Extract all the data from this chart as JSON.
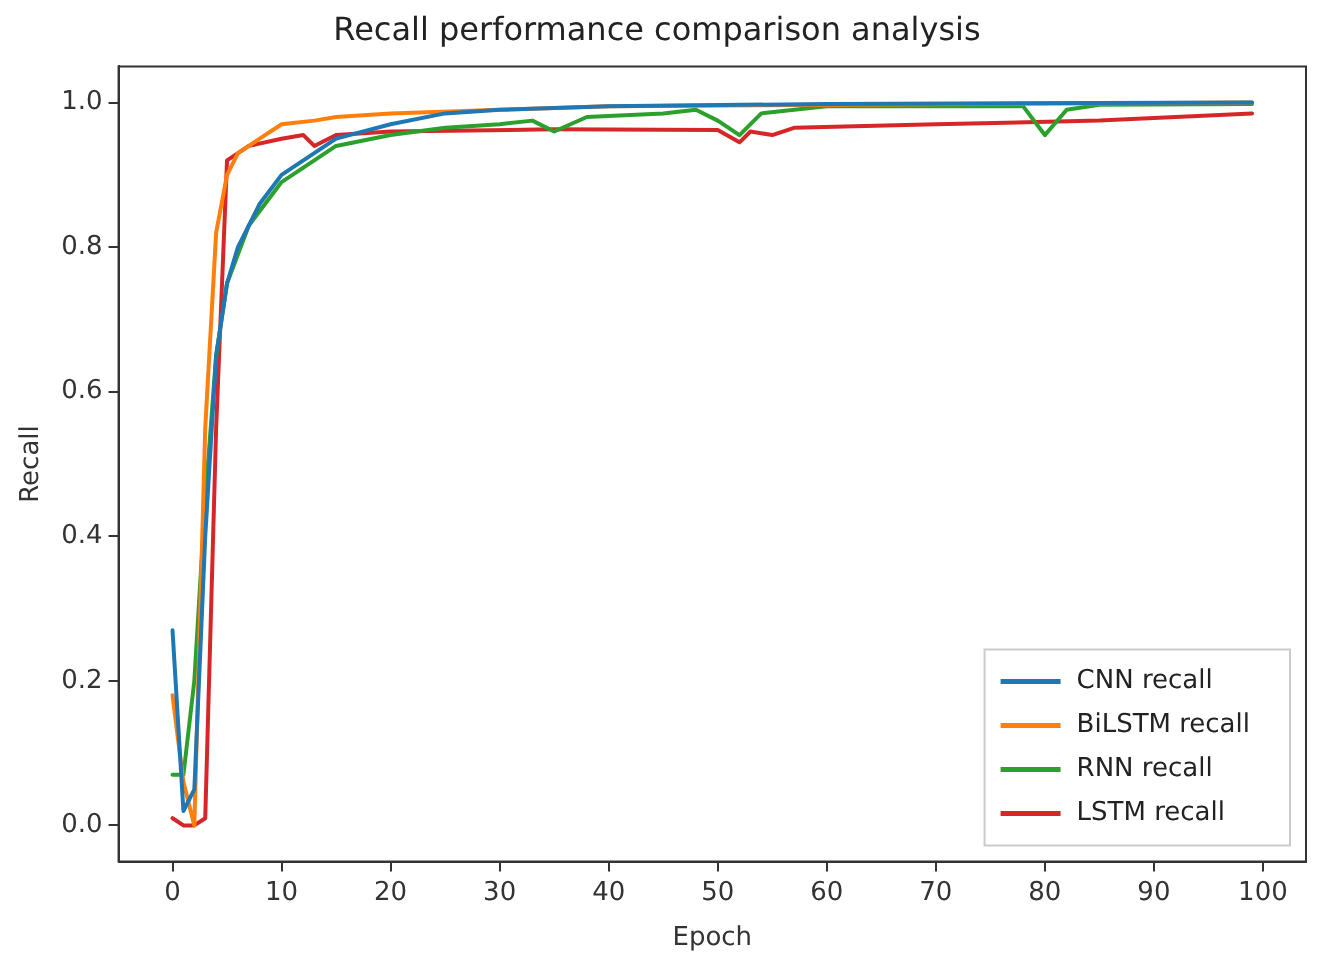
{
  "chart_data": {
    "type": "line",
    "title": "Recall performance comparison analysis",
    "xlabel": "Epoch",
    "ylabel": "Recall",
    "xlim": [
      -4.95,
      103.95
    ],
    "xticks": [
      0,
      10,
      20,
      30,
      40,
      50,
      60,
      70,
      80,
      90,
      100
    ],
    "ylim": [
      -0.05,
      1.05
    ],
    "yticks": [
      {
        "value": 0,
        "label": "0.0"
      },
      {
        "value": 0.2,
        "label": "0.2"
      },
      {
        "value": 0.4,
        "label": "0.4"
      },
      {
        "value": 0.6,
        "label": "0.6"
      },
      {
        "value": 0.8,
        "label": "0.8"
      },
      {
        "value": 1,
        "label": "1.0"
      }
    ],
    "grid": false,
    "legend": "bottom right",
    "marker": "none",
    "line_style": "solid",
    "series": [
      {
        "name": "CNN recall",
        "color": "#1f77b4",
        "x": [
          0,
          1,
          2,
          3,
          4,
          5,
          6,
          8,
          10,
          13,
          15,
          20,
          25,
          30,
          40,
          60,
          99
        ],
        "values": [
          0.27,
          0.02,
          0.05,
          0.4,
          0.65,
          0.75,
          0.8,
          0.86,
          0.9,
          0.93,
          0.95,
          0.97,
          0.985,
          0.99,
          0.995,
          0.998,
          1.0
        ]
      },
      {
        "name": "BiLSTM recall",
        "color": "#ff7f0e",
        "x": [
          0,
          1,
          2,
          3,
          4,
          5,
          6,
          8,
          10,
          13,
          15,
          20,
          30,
          40,
          99
        ],
        "values": [
          0.18,
          0.06,
          0.0,
          0.55,
          0.82,
          0.9,
          0.93,
          0.95,
          0.97,
          0.975,
          0.98,
          0.985,
          0.99,
          0.995,
          1.0
        ]
      },
      {
        "name": "RNN recall",
        "color": "#2ca02c",
        "x": [
          0,
          1,
          2,
          3,
          4,
          5,
          7,
          10,
          13,
          15,
          20,
          25,
          30,
          33,
          35,
          38,
          45,
          48,
          50,
          52,
          54,
          60,
          78,
          80,
          82,
          85,
          99
        ],
        "values": [
          0.07,
          0.07,
          0.2,
          0.45,
          0.65,
          0.75,
          0.83,
          0.89,
          0.92,
          0.94,
          0.955,
          0.965,
          0.97,
          0.975,
          0.96,
          0.98,
          0.985,
          0.99,
          0.975,
          0.955,
          0.985,
          0.995,
          0.995,
          0.955,
          0.99,
          0.997,
          0.998
        ]
      },
      {
        "name": "LSTM recall",
        "color": "#d62728",
        "x": [
          0,
          1,
          2,
          3,
          4,
          5,
          7,
          10,
          12,
          13,
          15,
          20,
          35,
          50,
          52,
          53,
          55,
          57,
          70,
          85,
          99
        ],
        "values": [
          0.01,
          0.0,
          0.0,
          0.01,
          0.55,
          0.92,
          0.94,
          0.95,
          0.955,
          0.94,
          0.955,
          0.96,
          0.963,
          0.962,
          0.945,
          0.96,
          0.955,
          0.965,
          0.97,
          0.975,
          0.985
        ]
      }
    ]
  }
}
